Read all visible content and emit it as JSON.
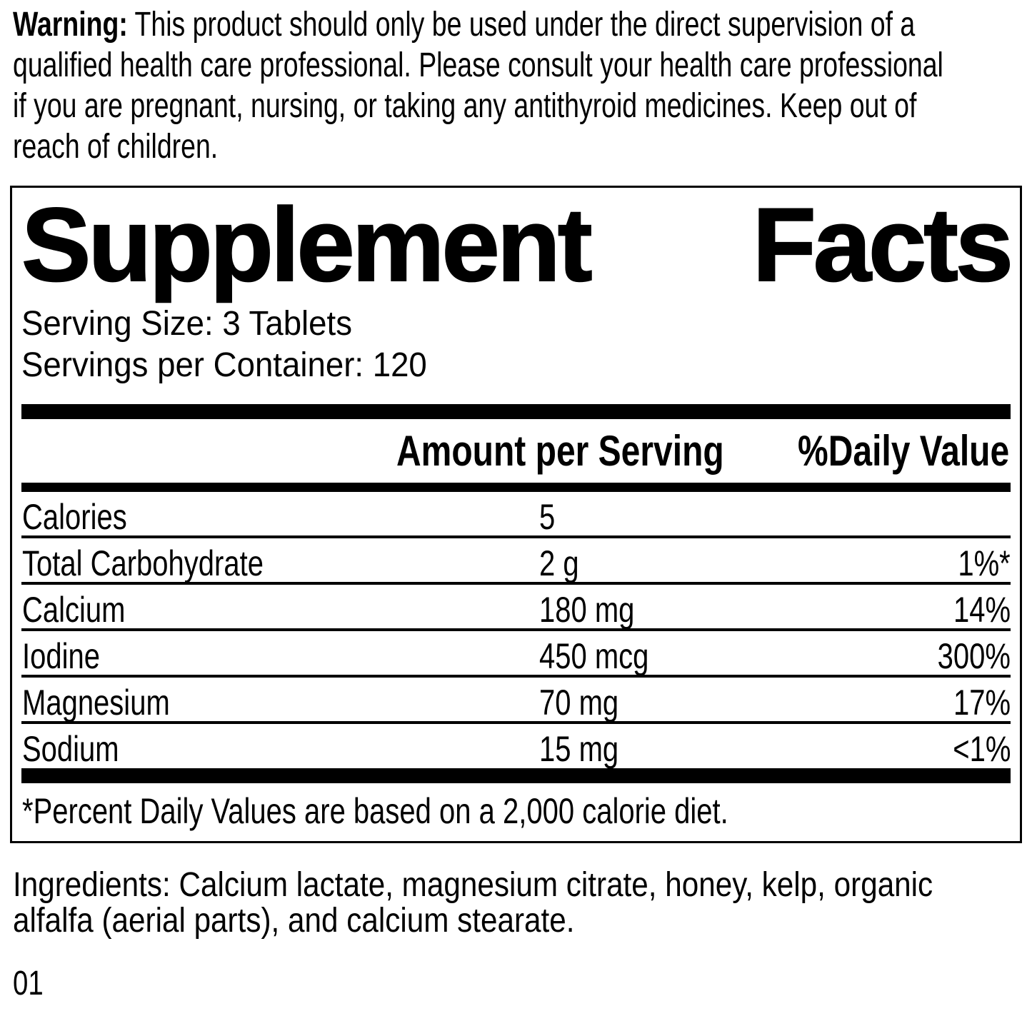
{
  "colors": {
    "ink": "#000000",
    "background": "#ffffff"
  },
  "warning": {
    "label": "Warning:",
    "lines": [
      "This product should only be used under the direct supervision of a",
      "qualified health care professional. Please consult your health care professional",
      "if you are pregnant, nursing, or taking any antithyroid medicines. Keep out of",
      "reach of children."
    ]
  },
  "panel": {
    "title_left": "Supplement",
    "title_right": "Facts",
    "serving_size": "Serving Size: 3 Tablets",
    "servings_per_container": "Servings per Container: 120",
    "columns": {
      "amount": "Amount per Serving",
      "daily_value": "%Daily Value"
    },
    "rows": [
      {
        "name": "Calories",
        "amount": "5",
        "dv": ""
      },
      {
        "name": "Total Carbohydrate",
        "amount": "2 g",
        "dv": "1%*"
      },
      {
        "name": "Calcium",
        "amount": "180 mg",
        "dv": "14%"
      },
      {
        "name": "Iodine",
        "amount": "450 mcg",
        "dv": "300%"
      },
      {
        "name": "Magnesium",
        "amount": "70 mg",
        "dv": "17%"
      },
      {
        "name": "Sodium",
        "amount": "15 mg",
        "dv": "<1%"
      }
    ],
    "footnote": "*Percent Daily Values are based on a 2,000 calorie diet."
  },
  "ingredients": {
    "lines": [
      "Ingredients: Calcium lactate, magnesium citrate, honey, kelp, organic",
      "alfalfa (aerial parts), and calcium stearate."
    ]
  },
  "footer_code": "01"
}
